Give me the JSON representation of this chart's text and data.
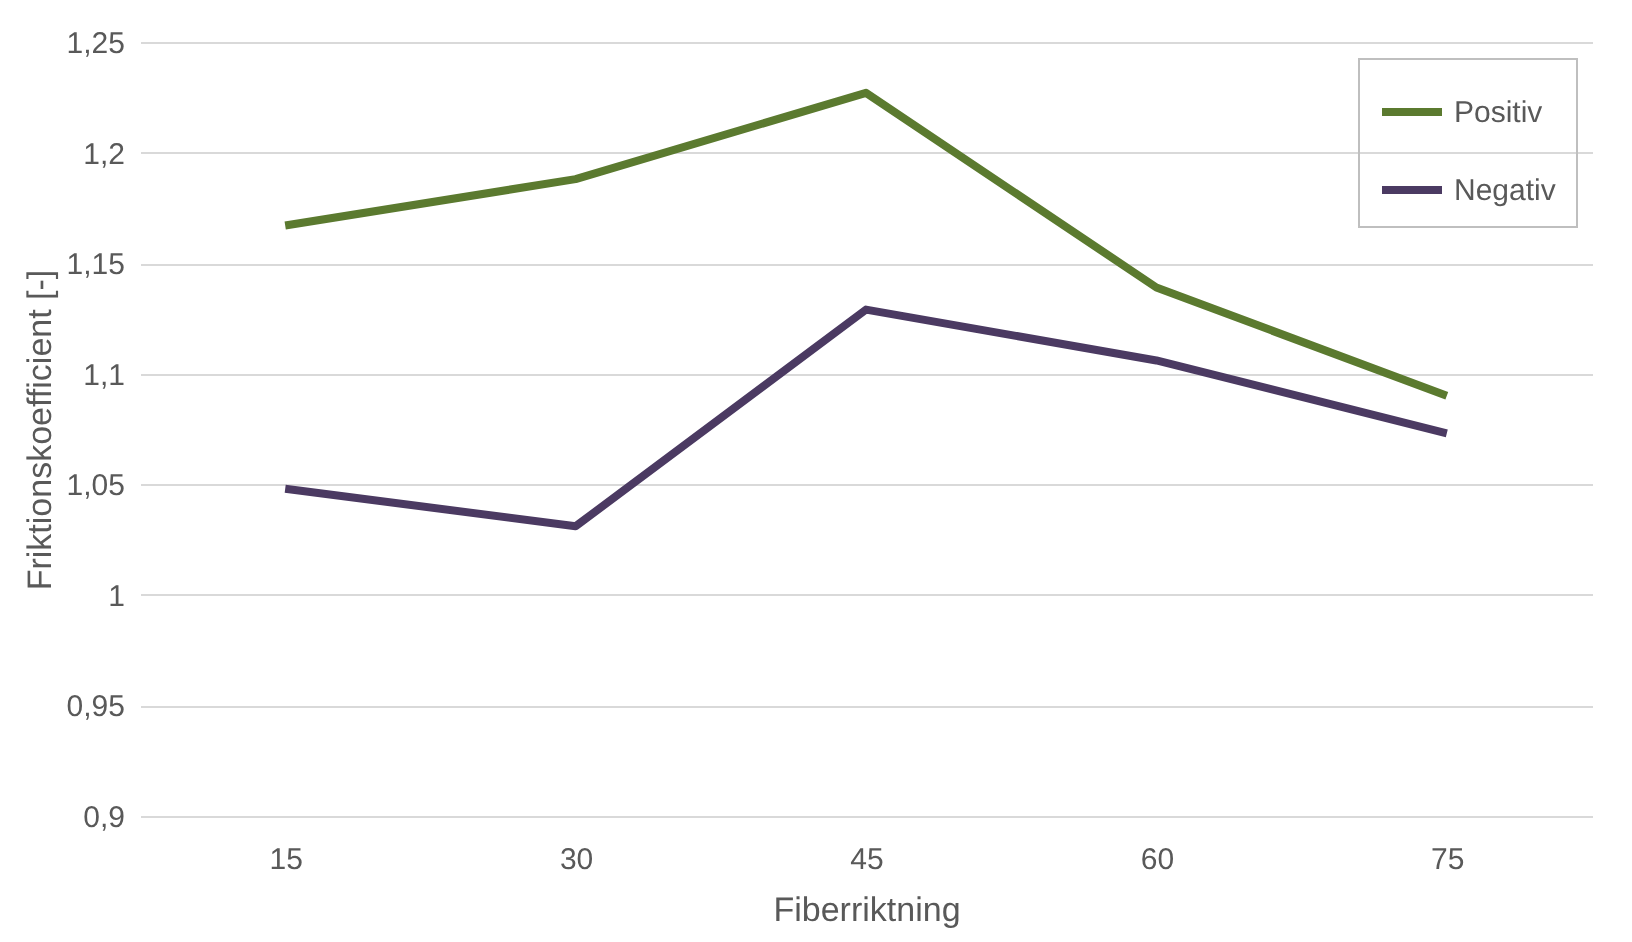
{
  "chart_data": {
    "type": "line",
    "xlabel": "Fiberriktning",
    "ylabel": "Friktionskoefficient [-]",
    "categories": [
      "15",
      "30",
      "45",
      "60",
      "75"
    ],
    "series": [
      {
        "name": "Positiv",
        "color": "#5b7a2f",
        "values": [
          1.167,
          1.188,
          1.227,
          1.139,
          1.09
        ]
      },
      {
        "name": "Negativ",
        "color": "#4b3a62",
        "values": [
          1.048,
          1.031,
          1.129,
          1.106,
          1.073
        ]
      }
    ],
    "ylim": [
      0.9,
      1.25
    ],
    "yticks": [
      {
        "value": 0.9,
        "label": "0,9"
      },
      {
        "value": 0.95,
        "label": "0,95"
      },
      {
        "value": 1,
        "label": "1"
      },
      {
        "value": 1.05,
        "label": "1,05"
      },
      {
        "value": 1.1,
        "label": "1,1"
      },
      {
        "value": 1.15,
        "label": "1,15"
      },
      {
        "value": 1.2,
        "label": "1,2"
      },
      {
        "value": 1.25,
        "label": "1,25"
      }
    ],
    "grid": "y",
    "legend": "top right",
    "marker": "none",
    "line_style": "solid"
  }
}
